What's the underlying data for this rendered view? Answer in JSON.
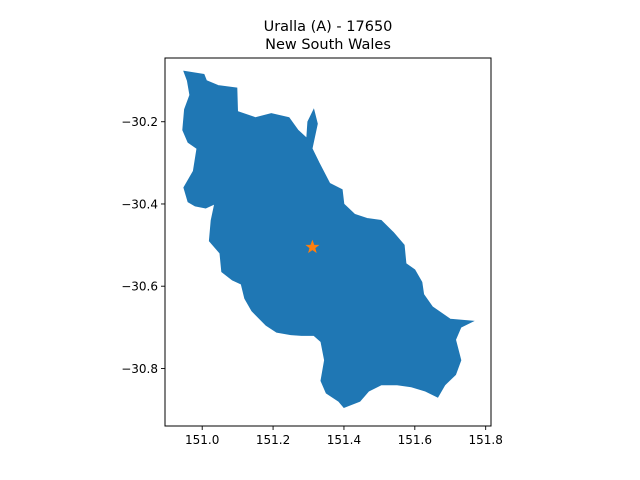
{
  "chart_data": {
    "type": "map",
    "title_line1": "Uralla (A) - 17650",
    "title_line2": "New South Wales",
    "xlim": [
      150.895,
      151.815
    ],
    "ylim": [
      -30.94,
      -30.045
    ],
    "x_ticks": [
      {
        "value": 151.0,
        "label": "151.0"
      },
      {
        "value": 151.2,
        "label": "151.2"
      },
      {
        "value": 151.4,
        "label": "151.4"
      },
      {
        "value": 151.6,
        "label": "151.6"
      },
      {
        "value": 151.8,
        "label": "151.8"
      }
    ],
    "y_ticks": [
      {
        "value": -30.2,
        "label": "−30.2"
      },
      {
        "value": -30.4,
        "label": "−30.4"
      },
      {
        "value": -30.6,
        "label": "−30.6"
      },
      {
        "value": -30.8,
        "label": "−30.8"
      }
    ],
    "region_color": "#1f77b4",
    "marker_color": "#ff7f0e",
    "marker": {
      "lon": 151.311,
      "lat": -30.505,
      "symbol": "star"
    },
    "boundary": [
      [
        150.948,
        -30.077
      ],
      [
        151.005,
        -30.085
      ],
      [
        151.012,
        -30.1
      ],
      [
        151.045,
        -30.112
      ],
      [
        151.098,
        -30.118
      ],
      [
        151.1,
        -30.175
      ],
      [
        151.15,
        -30.19
      ],
      [
        151.195,
        -30.18
      ],
      [
        151.245,
        -30.19
      ],
      [
        151.27,
        -30.22
      ],
      [
        151.295,
        -30.24
      ],
      [
        151.298,
        -30.2
      ],
      [
        151.315,
        -30.17
      ],
      [
        151.325,
        -30.205
      ],
      [
        151.31,
        -30.265
      ],
      [
        151.33,
        -30.3
      ],
      [
        151.36,
        -30.35
      ],
      [
        151.395,
        -30.365
      ],
      [
        151.4,
        -30.4
      ],
      [
        151.43,
        -30.425
      ],
      [
        151.465,
        -30.435
      ],
      [
        151.505,
        -30.44
      ],
      [
        151.54,
        -30.47
      ],
      [
        151.57,
        -30.5
      ],
      [
        151.575,
        -30.545
      ],
      [
        151.6,
        -30.56
      ],
      [
        151.62,
        -30.59
      ],
      [
        151.625,
        -30.62
      ],
      [
        151.65,
        -30.65
      ],
      [
        151.7,
        -30.68
      ],
      [
        151.765,
        -30.685
      ],
      [
        151.73,
        -30.7
      ],
      [
        151.715,
        -30.73
      ],
      [
        151.73,
        -30.78
      ],
      [
        151.715,
        -30.815
      ],
      [
        151.685,
        -30.84
      ],
      [
        151.665,
        -30.87
      ],
      [
        151.63,
        -30.855
      ],
      [
        151.59,
        -30.845
      ],
      [
        151.55,
        -30.84
      ],
      [
        151.505,
        -30.84
      ],
      [
        151.47,
        -30.855
      ],
      [
        151.445,
        -30.88
      ],
      [
        151.4,
        -30.895
      ],
      [
        151.385,
        -30.88
      ],
      [
        151.35,
        -30.86
      ],
      [
        151.335,
        -30.83
      ],
      [
        151.345,
        -30.78
      ],
      [
        151.335,
        -30.735
      ],
      [
        151.315,
        -30.72
      ],
      [
        151.28,
        -30.72
      ],
      [
        151.25,
        -30.718
      ],
      [
        151.21,
        -30.712
      ],
      [
        151.18,
        -30.695
      ],
      [
        151.14,
        -30.66
      ],
      [
        151.12,
        -30.63
      ],
      [
        151.11,
        -30.595
      ],
      [
        151.085,
        -30.585
      ],
      [
        151.055,
        -30.565
      ],
      [
        151.05,
        -30.52
      ],
      [
        151.02,
        -30.49
      ],
      [
        151.025,
        -30.44
      ],
      [
        151.035,
        -30.4
      ],
      [
        151.01,
        -30.41
      ],
      [
        150.98,
        -30.405
      ],
      [
        150.96,
        -30.395
      ],
      [
        150.948,
        -30.36
      ],
      [
        150.975,
        -30.32
      ],
      [
        150.985,
        -30.265
      ],
      [
        150.96,
        -30.25
      ],
      [
        150.945,
        -30.22
      ],
      [
        150.95,
        -30.17
      ],
      [
        150.965,
        -30.135
      ],
      [
        150.958,
        -30.1
      ],
      [
        150.948,
        -30.077
      ]
    ]
  }
}
